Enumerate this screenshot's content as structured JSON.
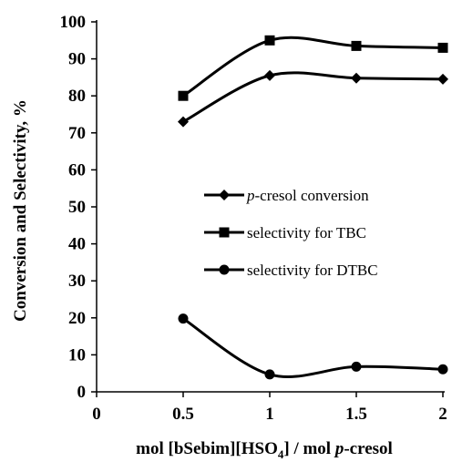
{
  "chart_data": {
    "type": "line",
    "xlabel_parts": [
      "mol [bSebim][HSO",
      "4",
      "] / mol  ",
      "p",
      "-cresol"
    ],
    "ylabel": "Conversion and Selectivity, %",
    "xlim": [
      0,
      2
    ],
    "ylim": [
      0,
      100
    ],
    "xticks": [
      "0",
      "0.5",
      "1",
      "1.5",
      "2"
    ],
    "yticks": [
      "0",
      "10",
      "20",
      "30",
      "40",
      "50",
      "60",
      "70",
      "80",
      "90",
      "100"
    ],
    "legend_position": "center-right",
    "x": [
      0.5,
      1,
      1.5,
      2
    ],
    "series": [
      {
        "name_italic": "p",
        "name_rest": "-cresol conversion",
        "marker": "diamond",
        "values": [
          73,
          85.5,
          84.8,
          84.5
        ]
      },
      {
        "name_italic": "",
        "name_rest": "selectivity for TBC",
        "marker": "square",
        "values": [
          80,
          95,
          93.5,
          93
        ]
      },
      {
        "name_italic": "",
        "name_rest": "selectivity for DTBC",
        "marker": "circle",
        "values": [
          19.8,
          4.7,
          6.8,
          6.1
        ]
      }
    ]
  }
}
